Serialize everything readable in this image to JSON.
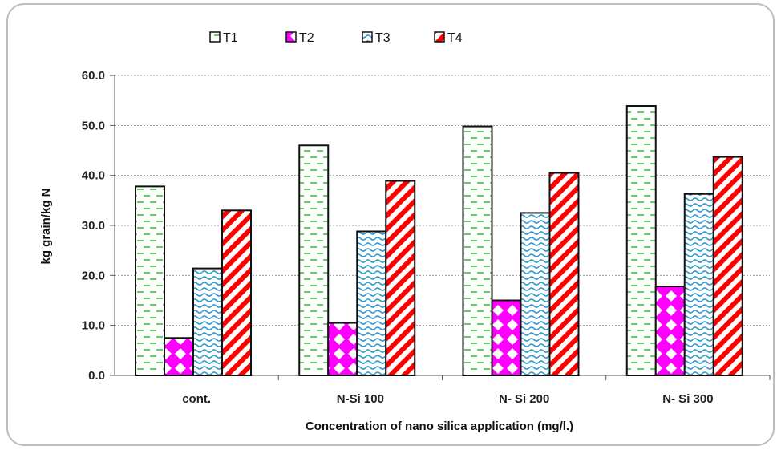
{
  "chart_data": {
    "type": "bar",
    "title": "",
    "xlabel": "Concentration of nano silica application  (mg/l.)",
    "ylabel": "kg grain/kg N",
    "categories": [
      "cont.",
      "N-Si 100",
      "N- Si 200",
      "N- Si 300"
    ],
    "ylim": [
      0,
      60
    ],
    "yticks": [
      "0.0",
      "10.0",
      "20.0",
      "30.0",
      "40.0",
      "50.0",
      "60.0"
    ],
    "grid": true,
    "legend_position": "top",
    "series": [
      {
        "name": "T1",
        "values": [
          37.8,
          46.0,
          49.8,
          53.9
        ],
        "color": "#33cc33",
        "pattern": "dashes"
      },
      {
        "name": "T2",
        "values": [
          7.5,
          10.5,
          15.0,
          17.8
        ],
        "color": "#ff00ff",
        "pattern": "diamonds"
      },
      {
        "name": "T3",
        "values": [
          21.4,
          28.8,
          32.5,
          36.3
        ],
        "color": "#3399cc",
        "pattern": "waves"
      },
      {
        "name": "T4",
        "values": [
          33.0,
          38.9,
          40.5,
          43.7
        ],
        "color": "#ff0000",
        "pattern": "diagonal-stripes"
      }
    ]
  }
}
